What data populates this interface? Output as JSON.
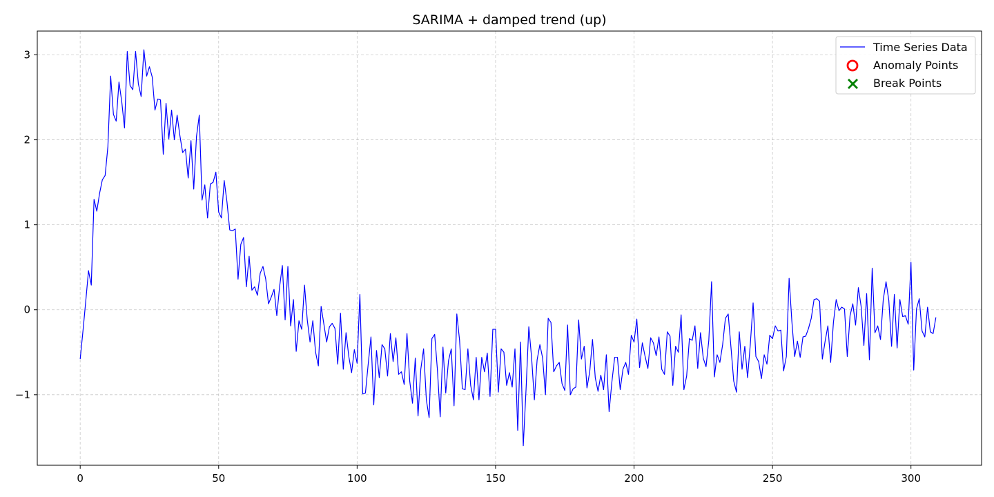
{
  "chart_data": {
    "type": "line",
    "title": "SARIMA + damped trend (up)",
    "xlabel": "",
    "ylabel": "",
    "xlim": [
      -15.5,
      325.5
    ],
    "ylim": [
      -1.83,
      3.28
    ],
    "xticks": [
      0,
      50,
      100,
      150,
      200,
      250,
      300
    ],
    "yticks": [
      -1,
      0,
      1,
      2,
      3
    ],
    "grid": true,
    "legend_position": "top-right",
    "series": [
      {
        "name": "Time Series Data",
        "color": "#0000ff",
        "x_start": 0,
        "x_step": 1,
        "values": [
          -0.58,
          -0.25,
          0.1,
          0.46,
          0.29,
          1.3,
          1.16,
          1.37,
          1.53,
          1.58,
          1.92,
          2.75,
          2.3,
          2.22,
          2.68,
          2.45,
          2.14,
          3.04,
          2.64,
          2.59,
          3.04,
          2.66,
          2.51,
          3.06,
          2.75,
          2.86,
          2.74,
          2.35,
          2.48,
          2.47,
          1.83,
          2.43,
          2.01,
          2.35,
          2.0,
          2.29,
          2.05,
          1.85,
          1.89,
          1.55,
          1.99,
          1.42,
          2.04,
          2.29,
          1.29,
          1.47,
          1.08,
          1.48,
          1.5,
          1.62,
          1.15,
          1.08,
          1.52,
          1.27,
          0.94,
          0.93,
          0.95,
          0.36,
          0.77,
          0.85,
          0.27,
          0.63,
          0.23,
          0.27,
          0.17,
          0.43,
          0.51,
          0.36,
          0.07,
          0.15,
          0.24,
          -0.07,
          0.27,
          0.52,
          -0.12,
          0.51,
          -0.19,
          0.12,
          -0.49,
          -0.13,
          -0.23,
          0.29,
          -0.12,
          -0.38,
          -0.13,
          -0.5,
          -0.66,
          0.04,
          -0.17,
          -0.38,
          -0.2,
          -0.16,
          -0.22,
          -0.64,
          -0.04,
          -0.7,
          -0.27,
          -0.55,
          -0.74,
          -0.47,
          -0.63,
          0.18,
          -0.99,
          -0.98,
          -0.64,
          -0.32,
          -1.12,
          -0.48,
          -0.8,
          -0.41,
          -0.46,
          -0.78,
          -0.28,
          -0.61,
          -0.33,
          -0.76,
          -0.73,
          -0.88,
          -0.28,
          -0.84,
          -1.1,
          -0.57,
          -1.25,
          -0.7,
          -0.46,
          -1.06,
          -1.27,
          -0.34,
          -0.29,
          -0.71,
          -1.26,
          -0.44,
          -0.98,
          -0.6,
          -0.46,
          -1.13,
          -0.05,
          -0.36,
          -0.93,
          -0.94,
          -0.46,
          -0.89,
          -1.06,
          -0.56,
          -1.06,
          -0.56,
          -0.73,
          -0.51,
          -1.02,
          -0.23,
          -0.23,
          -0.97,
          -0.46,
          -0.5,
          -0.89,
          -0.74,
          -0.91,
          -0.46,
          -1.42,
          -0.38,
          -1.6,
          -0.94,
          -0.2,
          -0.56,
          -1.06,
          -0.59,
          -0.41,
          -0.57,
          -1.0,
          -0.1,
          -0.15,
          -0.73,
          -0.66,
          -0.62,
          -0.87,
          -0.95,
          -0.18,
          -1.0,
          -0.93,
          -0.91,
          -0.12,
          -0.58,
          -0.43,
          -0.92,
          -0.73,
          -0.35,
          -0.8,
          -0.96,
          -0.77,
          -0.94,
          -0.53,
          -1.2,
          -0.85,
          -0.56,
          -0.56,
          -0.94,
          -0.7,
          -0.62,
          -0.76,
          -0.3,
          -0.38,
          -0.11,
          -0.68,
          -0.39,
          -0.55,
          -0.69,
          -0.33,
          -0.39,
          -0.54,
          -0.32,
          -0.7,
          -0.76,
          -0.26,
          -0.31,
          -0.89,
          -0.43,
          -0.5,
          -0.06,
          -0.94,
          -0.78,
          -0.34,
          -0.36,
          -0.19,
          -0.69,
          -0.27,
          -0.57,
          -0.67,
          -0.36,
          0.33,
          -0.79,
          -0.53,
          -0.62,
          -0.41,
          -0.1,
          -0.05,
          -0.44,
          -0.84,
          -0.97,
          -0.26,
          -0.7,
          -0.43,
          -0.8,
          -0.4,
          0.08,
          -0.55,
          -0.61,
          -0.81,
          -0.53,
          -0.64,
          -0.3,
          -0.34,
          -0.19,
          -0.25,
          -0.24,
          -0.72,
          -0.55,
          0.37,
          -0.14,
          -0.55,
          -0.37,
          -0.56,
          -0.32,
          -0.31,
          -0.22,
          -0.1,
          0.12,
          0.13,
          0.1,
          -0.58,
          -0.37,
          -0.19,
          -0.62,
          -0.15,
          0.12,
          -0.01,
          0.03,
          0.01,
          -0.55,
          -0.07,
          0.07,
          -0.18,
          0.26,
          0.04,
          -0.42,
          0.19,
          -0.59,
          0.49,
          -0.27,
          -0.19,
          -0.35,
          0.12,
          0.33,
          0.11,
          -0.43,
          0.18,
          -0.45,
          0.12,
          -0.08,
          -0.07,
          -0.17,
          0.56,
          -0.71,
          0.01,
          0.13,
          -0.25,
          -0.32,
          0.03,
          -0.26,
          -0.28,
          -0.09
        ]
      },
      {
        "name": "Anomaly Points",
        "color": "#ff0000",
        "marker": "circle",
        "points": []
      },
      {
        "name": "Break Points",
        "color": "#008000",
        "marker": "x",
        "points": []
      }
    ]
  }
}
